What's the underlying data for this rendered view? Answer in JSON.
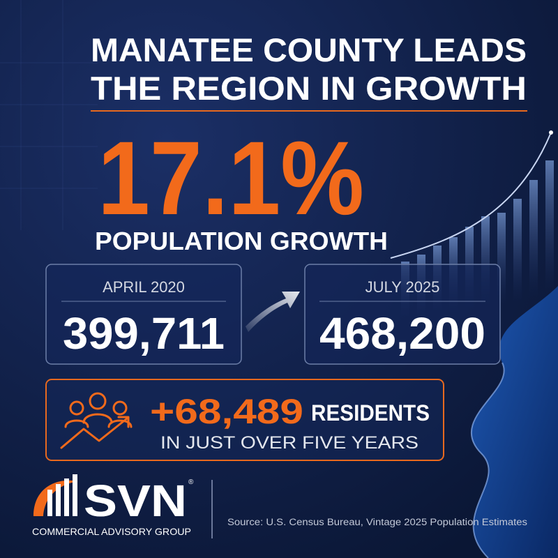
{
  "title_lines": [
    "MANATEE COUNTY LEADS",
    "THE REGION IN GROWTH"
  ],
  "headline": "17.1%",
  "headline_caption": "POPULATION GROWTH",
  "cards": [
    {
      "label": "APRIL 2020",
      "value": "399,711"
    },
    {
      "label": "JULY 2025",
      "value": "468,200"
    }
  ],
  "highlight": {
    "value": "+68,489",
    "unit": "RESIDENTS",
    "note": "IN JUST OVER FIVE YEARS"
  },
  "logo": {
    "name": "SVN",
    "mark": "®",
    "tagline": "COMMERCIAL ADVISORY GROUP"
  },
  "source": "Source: U.S. Census Bureau, Vintage 2025 Population Estimates"
}
